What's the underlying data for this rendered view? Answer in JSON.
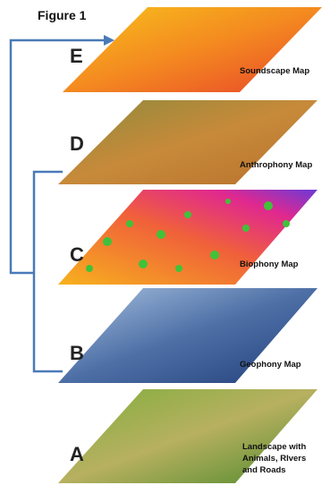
{
  "figure_title": "Figure 1",
  "layers": [
    {
      "letter": "E",
      "label": [
        "Soundscape Map"
      ]
    },
    {
      "letter": "D",
      "label": [
        "Anthrophony Map"
      ]
    },
    {
      "letter": "C",
      "label": [
        "Biophony Map"
      ]
    },
    {
      "letter": "B",
      "label": [
        "Geophony Map"
      ]
    },
    {
      "letter": "A",
      "label": [
        "Landscape with",
        "Animals, RIvers",
        "and Roads"
      ]
    }
  ]
}
